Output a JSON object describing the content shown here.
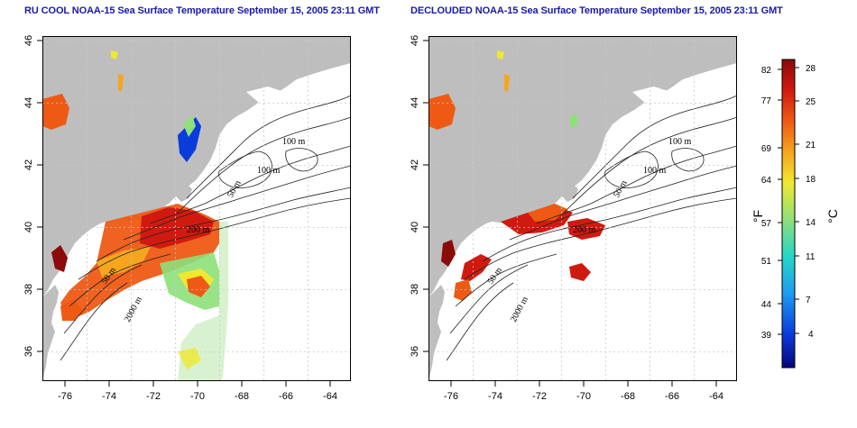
{
  "panels": [
    {
      "id": "left",
      "title": "RU COOL NOAA-15 Sea Surface Temperature September 15, 2005 23:11 GMT",
      "x_ticks": [
        "-76",
        "-74",
        "-72",
        "-70",
        "-68",
        "-66",
        "-64"
      ],
      "y_ticks": [
        "46",
        "44",
        "42",
        "40",
        "38",
        "36"
      ],
      "contour_labels": [
        "100 m",
        "100 m",
        "50 m",
        "2000 m",
        "200 m",
        "50 m"
      ]
    },
    {
      "id": "right",
      "title": "DECLOUDED NOAA-15 Sea Surface Temperature September 15, 2005 23:11 GMT",
      "x_ticks": [
        "-76",
        "-74",
        "-72",
        "-70",
        "-68",
        "-66",
        "-64"
      ],
      "y_ticks": [
        "46",
        "44",
        "42",
        "40",
        "38",
        "36"
      ],
      "contour_labels": [
        "100 m",
        "100 m",
        "50 m",
        "2000 m",
        "200 m",
        "50 m"
      ]
    }
  ],
  "colorbar": {
    "fahrenheit_ticks": [
      "82",
      "77",
      "69",
      "64",
      "57",
      "51",
      "44",
      "39"
    ],
    "celsius_ticks": [
      "28",
      "25",
      "21",
      "18",
      "14",
      "11",
      "7",
      "4"
    ],
    "fahrenheit_unit": "°F",
    "celsius_unit": "°C",
    "colors": [
      "#06067a",
      "#0a3cdc",
      "#1e9bf0",
      "#24d6c8",
      "#8ee07a",
      "#f0e830",
      "#f5a51e",
      "#ee5a14",
      "#d11a0f",
      "#8b0a0a"
    ]
  },
  "colors": {
    "land": "#bebebe",
    "ocean": "#ffffff",
    "title": "#1a1aa6",
    "grid": "#bdbdbd"
  }
}
